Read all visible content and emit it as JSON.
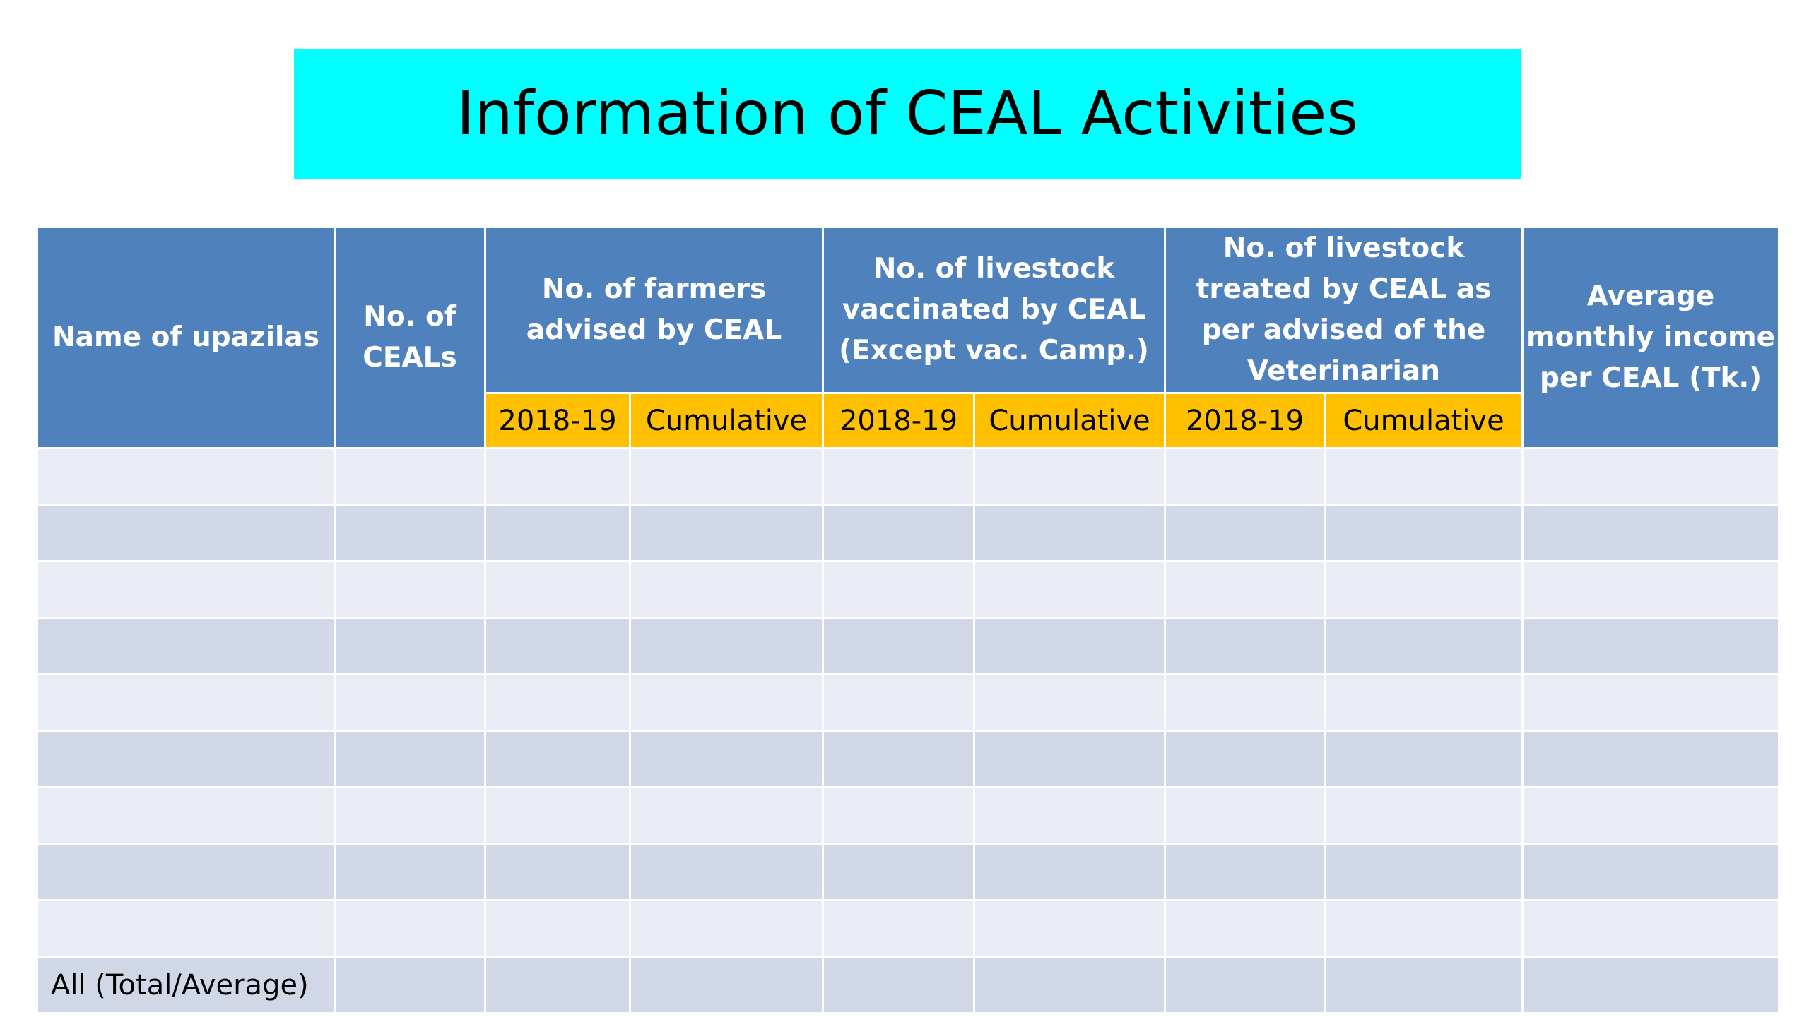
{
  "title": "Information of CEAL Activities",
  "table": {
    "headers": {
      "name": "Name of upazilas",
      "num_ceals": "No. of CEALs",
      "farmers": "No. of farmers advised by CEAL",
      "vaccinated": "No. of livestock vaccinated by CEAL (Except vac. Camp.)",
      "treated": "No. of livestock treated by CEAL as per advised of the  Veterinarian",
      "income": "Average monthly income per CEAL (Tk.)"
    },
    "subheaders": {
      "farmers_year": "2018-19",
      "farmers_cum": "Cumulative",
      "vacc_year": "2018-19",
      "vacc_cum": "Cumulative",
      "treat_year": "2018-19",
      "treat_cum": "Cumulative"
    },
    "total_label": "All (Total/Average)"
  },
  "colors": {
    "title_bg": "#00FFFF",
    "header_bg": "#4F81BD",
    "subheader_bg": "#FFC000",
    "row_light": "#E9EBF5",
    "row_dark": "#D0D8E8"
  }
}
